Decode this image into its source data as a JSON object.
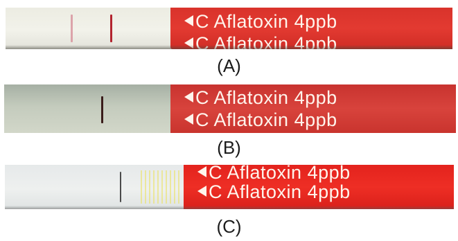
{
  "panels": [
    {
      "caption": "(A)",
      "label_row_top": "C Aflatoxin 4ppb",
      "label_row_bottom": "C Aflatoxin 4ppb",
      "test_line_color": "#d68a95",
      "control_line_color": "#b3242f",
      "label_band_color": "#e0372f"
    },
    {
      "caption": "(B)",
      "label_row_top": "C Aflatoxin 4ppb",
      "label_row_bottom": "C Aflatoxin 4ppb",
      "control_line_color": "#3a1c1a",
      "label_band_color": "#d2403a"
    },
    {
      "caption": "(C)",
      "label_row_top": "C Aflatoxin 4ppb",
      "label_row_bottom": "C Aflatoxin 4ppb",
      "control_line_color": "#4a4a4a",
      "label_band_color": "#e92a22"
    }
  ]
}
